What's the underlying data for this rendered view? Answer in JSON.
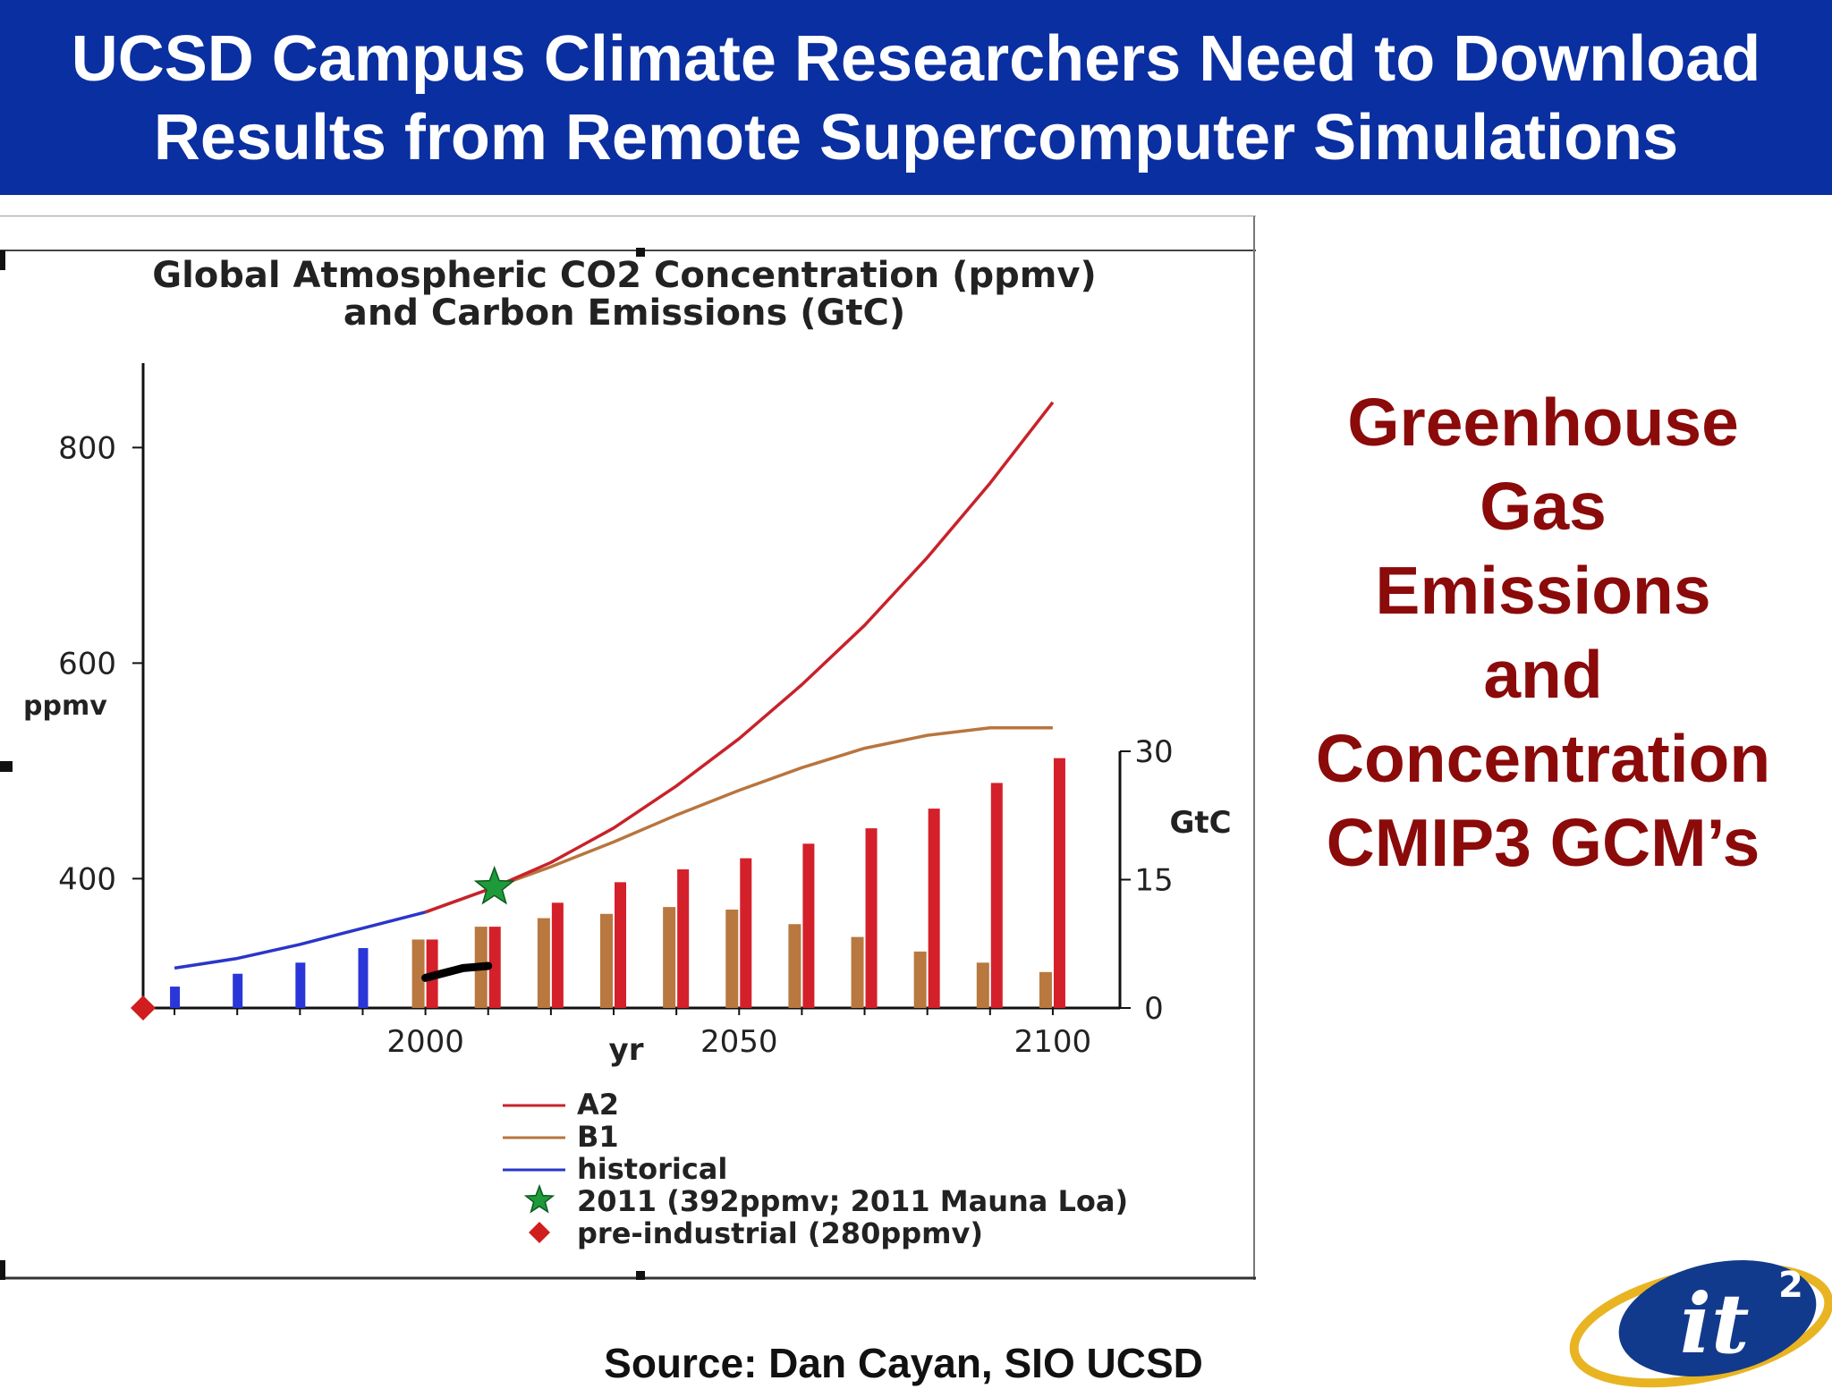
{
  "slide": {
    "title_line1": "UCSD Campus Climate Researchers Need to Download",
    "title_line2": "Results from Remote Supercomputer Simulations",
    "side_text": [
      "Greenhouse",
      "Gas",
      "Emissions",
      "and",
      "Concentration",
      "CMIP3 GCM’s"
    ],
    "source": "Source: Dan Cayan, SIO UCSD",
    "logo_text": "it",
    "logo_sup": "2",
    "colors": {
      "title_bar": "#0a2fa0",
      "side_text": "#8b0a0a",
      "a2": "#c8222a",
      "b1": "#b8753e",
      "historical": "#2a36c8",
      "star": "#1f9a3a",
      "preindustrial": "#d01e1e",
      "bars_historical": "#2a36d8",
      "bars_a2": "#d4202a",
      "bars_b1": "#b87840"
    }
  },
  "chart_data": {
    "type": "line",
    "title_line1": "Global Atmospheric CO2 Concentration (ppmv)",
    "title_line2": "and Carbon Emissions (GtC)",
    "xlabel": "yr",
    "ylabel_left": "ppmv",
    "ylabel_right": "GtC",
    "x_ticks": [
      2000,
      2050,
      2100
    ],
    "y_left_ticks": [
      400,
      600,
      800
    ],
    "y_right_ticks": [
      0,
      15,
      30
    ],
    "x_range": [
      1955,
      2105
    ],
    "y_left_range": [
      250,
      850
    ],
    "y_right_range": [
      0,
      30
    ],
    "legend": [
      "A2",
      "B1",
      "historical",
      "2011 (392ppmv; 2011 Mauna Loa)",
      "pre-industrial (280ppmv)"
    ],
    "legend_position": "bottom",
    "series": [
      {
        "name": "historical",
        "x": [
          1960,
          1970,
          1980,
          1990,
          2000
        ],
        "y": [
          317,
          326,
          339,
          354,
          369
        ]
      },
      {
        "name": "B1",
        "x": [
          2000,
          2011,
          2020,
          2030,
          2040,
          2050,
          2060,
          2070,
          2080,
          2090,
          2100
        ],
        "y": [
          369,
          392,
          411,
          434,
          459,
          482,
          503,
          521,
          533,
          540,
          540
        ]
      },
      {
        "name": "A2",
        "x": [
          2000,
          2011,
          2020,
          2030,
          2040,
          2050,
          2060,
          2070,
          2080,
          2090,
          2100
        ],
        "y": [
          369,
          392,
          415,
          447,
          486,
          530,
          580,
          635,
          698,
          767,
          842
        ]
      }
    ],
    "markers": [
      {
        "name": "2011 (392ppmv; 2011 Mauna Loa)",
        "x": 2011,
        "y": 392
      },
      {
        "name": "pre-industrial (280ppmv)",
        "x": 1955,
        "y": 280
      }
    ],
    "observed_dots": {
      "x": [
        2000,
        2002,
        2004,
        2006,
        2008,
        2010
      ],
      "y": [
        308,
        311,
        314,
        317,
        318,
        319
      ]
    },
    "emission_bars": {
      "historical": {
        "x": [
          1960,
          1970,
          1980,
          1990
        ],
        "values": [
          2.5,
          4.0,
          5.3,
          7.0
        ]
      },
      "B1": {
        "x": [
          2000,
          2010,
          2020,
          2030,
          2040,
          2050,
          2060,
          2070,
          2080,
          2090,
          2100
        ],
        "values": [
          8.0,
          9.5,
          10.5,
          11.0,
          11.8,
          11.5,
          9.8,
          8.3,
          6.6,
          5.3,
          4.2
        ]
      },
      "A2": {
        "x": [
          2000,
          2010,
          2020,
          2030,
          2040,
          2050,
          2060,
          2070,
          2080,
          2090,
          2100
        ],
        "values": [
          8.0,
          9.5,
          12.3,
          14.7,
          16.2,
          17.5,
          19.2,
          21.0,
          23.3,
          26.3,
          29.2
        ]
      }
    }
  }
}
